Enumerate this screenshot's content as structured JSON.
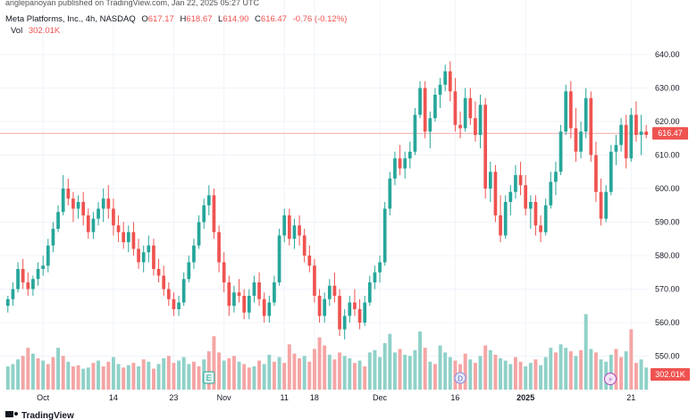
{
  "header": {
    "publisher": "anglepanoyan published on TradingView.com, Jan 22, 2025 05:27 UTC"
  },
  "legend": {
    "symbol": "Meta Platforms, Inc., 4h, NASDAQ",
    "open_label": "O",
    "open": "617.17",
    "high_label": "H",
    "high": "618.67",
    "low_label": "L",
    "low": "614.90",
    "close_label": "C",
    "close": "616.47",
    "change": "-0.76 (-0.12%)",
    "vol_label": "Vol",
    "vol": "302.01K"
  },
  "footer": {
    "brand": "TradingView"
  },
  "events": {
    "earnings": "E",
    "dividend": "D",
    "flash": "⚡"
  },
  "colors": {
    "up": "#26a69a",
    "down": "#ef5350",
    "up_vol": "#8fd1c8",
    "down_vol": "#f5a5a5",
    "grid": "#f0f3fa",
    "axis_text": "#131722"
  },
  "chart_data": {
    "type": "candlestick",
    "ylim": [
      540,
      644
    ],
    "y_ticks": [
      "640.00",
      "630.00",
      "620.00",
      "610.00",
      "600.00",
      "590.00",
      "580.00",
      "570.00",
      "560.00",
      "550.00"
    ],
    "x_ticks": [
      {
        "label": "Oct",
        "i": 7
      },
      {
        "label": "14",
        "i": 21
      },
      {
        "label": "23",
        "i": 33
      },
      {
        "label": "Nov",
        "i": 43
      },
      {
        "label": "11",
        "i": 55
      },
      {
        "label": "18",
        "i": 61
      },
      {
        "label": "Dec",
        "i": 74
      },
      {
        "label": "16",
        "i": 89
      },
      {
        "label": "2025",
        "i": 103
      },
      {
        "label": "21",
        "i": 124
      }
    ],
    "last_price": "616.47",
    "last_volume": "302.01K",
    "earnings_i": 40,
    "dividend_i": 90,
    "candles": [
      [
        565,
        568,
        563,
        567
      ],
      [
        567,
        572,
        565,
        570
      ],
      [
        570,
        578,
        569,
        576
      ],
      [
        576,
        579,
        570,
        572
      ],
      [
        572,
        575,
        568,
        570
      ],
      [
        570,
        574,
        568,
        573
      ],
      [
        573,
        578,
        571,
        576
      ],
      [
        576,
        580,
        574,
        577
      ],
      [
        577,
        585,
        575,
        583
      ],
      [
        583,
        590,
        581,
        588
      ],
      [
        588,
        595,
        587,
        593
      ],
      [
        593,
        604,
        592,
        600
      ],
      [
        600,
        603,
        595,
        597
      ],
      [
        597,
        599,
        590,
        594
      ],
      [
        594,
        598,
        591,
        596
      ],
      [
        596,
        599,
        589,
        592
      ],
      [
        592,
        594,
        585,
        587
      ],
      [
        587,
        593,
        585,
        591
      ],
      [
        591,
        596,
        589,
        594
      ],
      [
        594,
        600,
        590,
        597
      ],
      [
        597,
        601,
        591,
        594
      ],
      [
        594,
        597,
        586,
        589
      ],
      [
        589,
        592,
        584,
        587
      ],
      [
        587,
        590,
        582,
        584
      ],
      [
        584,
        589,
        581,
        587
      ],
      [
        587,
        590,
        580,
        582
      ],
      [
        582,
        585,
        576,
        578
      ],
      [
        578,
        583,
        575,
        581
      ],
      [
        581,
        586,
        578,
        583
      ],
      [
        583,
        585,
        574,
        576
      ],
      [
        576,
        579,
        572,
        574
      ],
      [
        574,
        577,
        568,
        570
      ],
      [
        570,
        572,
        565,
        567
      ],
      [
        567,
        569,
        562,
        564
      ],
      [
        564,
        568,
        562,
        566
      ],
      [
        566,
        575,
        565,
        573
      ],
      [
        573,
        580,
        572,
        578
      ],
      [
        578,
        585,
        576,
        583
      ],
      [
        583,
        592,
        582,
        590
      ],
      [
        590,
        597,
        588,
        595
      ],
      [
        595,
        601,
        592,
        598
      ],
      [
        598,
        600,
        585,
        587
      ],
      [
        587,
        589,
        575,
        578
      ],
      [
        578,
        581,
        569,
        572
      ],
      [
        572,
        574,
        562,
        565
      ],
      [
        565,
        571,
        563,
        569
      ],
      [
        569,
        573,
        566,
        568
      ],
      [
        568,
        570,
        561,
        563
      ],
      [
        563,
        570,
        561,
        568
      ],
      [
        568,
        574,
        566,
        572
      ],
      [
        572,
        575,
        565,
        567
      ],
      [
        567,
        569,
        560,
        562
      ],
      [
        562,
        568,
        560,
        566
      ],
      [
        566,
        574,
        565,
        572
      ],
      [
        572,
        588,
        571,
        586
      ],
      [
        586,
        594,
        584,
        592
      ],
      [
        592,
        594,
        583,
        585
      ],
      [
        585,
        591,
        582,
        589
      ],
      [
        589,
        592,
        583,
        586
      ],
      [
        586,
        588,
        578,
        580
      ],
      [
        580,
        583,
        575,
        577
      ],
      [
        577,
        579,
        566,
        568
      ],
      [
        568,
        570,
        560,
        562
      ],
      [
        562,
        569,
        560,
        567
      ],
      [
        567,
        573,
        565,
        571
      ],
      [
        571,
        575,
        566,
        568
      ],
      [
        568,
        570,
        556,
        558
      ],
      [
        558,
        564,
        555,
        562
      ],
      [
        562,
        568,
        560,
        566
      ],
      [
        566,
        570,
        562,
        564
      ],
      [
        564,
        567,
        558,
        560
      ],
      [
        560,
        568,
        559,
        566
      ],
      [
        566,
        574,
        565,
        572
      ],
      [
        572,
        577,
        570,
        575
      ],
      [
        575,
        580,
        572,
        578
      ],
      [
        578,
        596,
        577,
        594
      ],
      [
        594,
        605,
        592,
        603
      ],
      [
        603,
        611,
        601,
        609
      ],
      [
        609,
        613,
        604,
        606
      ],
      [
        606,
        611,
        603,
        609
      ],
      [
        609,
        614,
        606,
        611
      ],
      [
        611,
        624,
        610,
        622
      ],
      [
        622,
        632,
        621,
        630
      ],
      [
        630,
        632,
        615,
        617
      ],
      [
        617,
        623,
        612,
        621
      ],
      [
        621,
        630,
        620,
        628
      ],
      [
        628,
        633,
        624,
        631
      ],
      [
        631,
        637,
        629,
        635
      ],
      [
        635,
        638,
        626,
        629
      ],
      [
        629,
        633,
        617,
        619
      ],
      [
        619,
        623,
        615,
        618
      ],
      [
        618,
        630,
        617,
        627
      ],
      [
        627,
        630,
        619,
        621
      ],
      [
        621,
        626,
        614,
        616
      ],
      [
        616,
        628,
        612,
        625
      ],
      [
        625,
        627,
        597,
        600
      ],
      [
        600,
        608,
        596,
        605
      ],
      [
        605,
        607,
        590,
        592
      ],
      [
        592,
        598,
        584,
        586
      ],
      [
        586,
        598,
        585,
        596
      ],
      [
        596,
        601,
        592,
        599
      ],
      [
        599,
        607,
        597,
        604
      ],
      [
        604,
        608,
        598,
        601
      ],
      [
        601,
        604,
        592,
        594
      ],
      [
        594,
        598,
        588,
        596
      ],
      [
        596,
        598,
        586,
        589
      ],
      [
        589,
        592,
        584,
        587
      ],
      [
        587,
        597,
        586,
        595
      ],
      [
        595,
        605,
        594,
        602
      ],
      [
        602,
        608,
        598,
        605
      ],
      [
        605,
        619,
        604,
        617
      ],
      [
        617,
        631,
        616,
        629
      ],
      [
        629,
        632,
        615,
        618
      ],
      [
        618,
        624,
        608,
        611
      ],
      [
        611,
        620,
        609,
        617
      ],
      [
        617,
        630,
        615,
        627
      ],
      [
        627,
        629,
        608,
        610
      ],
      [
        610,
        614,
        596,
        599
      ],
      [
        599,
        603,
        589,
        591
      ],
      [
        591,
        601,
        590,
        599
      ],
      [
        599,
        613,
        598,
        611
      ],
      [
        611,
        616,
        607,
        613
      ],
      [
        613,
        621,
        611,
        619
      ],
      [
        619,
        622,
        606,
        609
      ],
      [
        609,
        624,
        608,
        622
      ],
      [
        622,
        626,
        614,
        616
      ],
      [
        616,
        622,
        610,
        617
      ],
      [
        617,
        619,
        615,
        616
      ]
    ],
    "volumes": [
      [
        2.0,
        1
      ],
      [
        2.2,
        1
      ],
      [
        2.6,
        1
      ],
      [
        2.9,
        0
      ],
      [
        3.6,
        0
      ],
      [
        3.1,
        1
      ],
      [
        2.7,
        0
      ],
      [
        2.5,
        1
      ],
      [
        2.2,
        0
      ],
      [
        2.8,
        0
      ],
      [
        3.6,
        1
      ],
      [
        2.9,
        0
      ],
      [
        2.4,
        1
      ],
      [
        2.0,
        0
      ],
      [
        2.1,
        0
      ],
      [
        1.8,
        1
      ],
      [
        1.9,
        1
      ],
      [
        2.3,
        0
      ],
      [
        2.5,
        1
      ],
      [
        2.0,
        0
      ],
      [
        2.4,
        0
      ],
      [
        2.8,
        1
      ],
      [
        2.2,
        1
      ],
      [
        1.9,
        0
      ],
      [
        2.1,
        1
      ],
      [
        2.3,
        0
      ],
      [
        2.0,
        1
      ],
      [
        2.6,
        0
      ],
      [
        2.4,
        1
      ],
      [
        1.8,
        0
      ],
      [
        2.2,
        1
      ],
      [
        2.7,
        1
      ],
      [
        2.9,
        0
      ],
      [
        2.3,
        0
      ],
      [
        2.5,
        1
      ],
      [
        2.8,
        1
      ],
      [
        2.2,
        1
      ],
      [
        2.4,
        0
      ],
      [
        2.0,
        0
      ],
      [
        2.6,
        1
      ],
      [
        3.3,
        0
      ],
      [
        4.6,
        0
      ],
      [
        3.2,
        0
      ],
      [
        2.5,
        1
      ],
      [
        2.7,
        0
      ],
      [
        2.9,
        0
      ],
      [
        2.4,
        1
      ],
      [
        2.2,
        0
      ],
      [
        1.9,
        0
      ],
      [
        2.0,
        1
      ],
      [
        2.5,
        0
      ],
      [
        2.2,
        1
      ],
      [
        3.0,
        1
      ],
      [
        2.4,
        0
      ],
      [
        2.8,
        1
      ],
      [
        2.3,
        0
      ],
      [
        3.9,
        0
      ],
      [
        3.1,
        0
      ],
      [
        2.7,
        0
      ],
      [
        2.9,
        1
      ],
      [
        2.4,
        0
      ],
      [
        3.5,
        0
      ],
      [
        4.5,
        0
      ],
      [
        3.8,
        0
      ],
      [
        3.0,
        1
      ],
      [
        2.6,
        0
      ],
      [
        3.2,
        0
      ],
      [
        2.9,
        1
      ],
      [
        2.7,
        1
      ],
      [
        2.3,
        0
      ],
      [
        2.5,
        1
      ],
      [
        2.0,
        0
      ],
      [
        3.2,
        1
      ],
      [
        3.4,
        1
      ],
      [
        2.8,
        1
      ],
      [
        4.0,
        1
      ],
      [
        4.8,
        1
      ],
      [
        3.2,
        1
      ],
      [
        3.5,
        0
      ],
      [
        3.0,
        1
      ],
      [
        2.9,
        1
      ],
      [
        3.4,
        1
      ],
      [
        5.0,
        1
      ],
      [
        3.6,
        0
      ],
      [
        2.4,
        1
      ],
      [
        2.2,
        0
      ],
      [
        3.8,
        1
      ],
      [
        3.2,
        1
      ],
      [
        2.8,
        1
      ],
      [
        2.5,
        0
      ],
      [
        2.2,
        0
      ],
      [
        3.1,
        0
      ],
      [
        2.6,
        1
      ],
      [
        2.3,
        0
      ],
      [
        2.9,
        1
      ],
      [
        3.8,
        0
      ],
      [
        3.4,
        1
      ],
      [
        3.0,
        0
      ],
      [
        2.7,
        1
      ],
      [
        2.5,
        1
      ],
      [
        2.2,
        1
      ],
      [
        2.8,
        0
      ],
      [
        2.4,
        0
      ],
      [
        2.0,
        1
      ],
      [
        2.3,
        1
      ],
      [
        2.6,
        0
      ],
      [
        2.1,
        1
      ],
      [
        2.8,
        1
      ],
      [
        3.6,
        1
      ],
      [
        3.2,
        0
      ],
      [
        3.9,
        1
      ],
      [
        3.6,
        1
      ],
      [
        3.3,
        0
      ],
      [
        2.9,
        1
      ],
      [
        3.4,
        0
      ],
      [
        6.5,
        1
      ],
      [
        3.5,
        1
      ],
      [
        3.2,
        0
      ],
      [
        2.6,
        1
      ],
      [
        2.4,
        1
      ],
      [
        3.0,
        1
      ],
      [
        3.5,
        0
      ],
      [
        2.8,
        0
      ],
      [
        3.3,
        1
      ],
      [
        5.2,
        0
      ],
      [
        2.3,
        0
      ],
      [
        2.6,
        1
      ],
      [
        1.9,
        1
      ]
    ]
  }
}
